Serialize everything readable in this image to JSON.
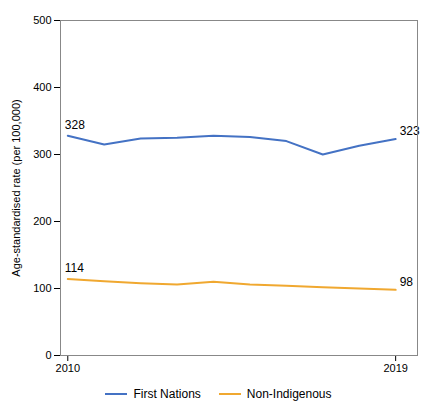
{
  "chart_data": {
    "type": "line",
    "x": [
      2010,
      2011,
      2012,
      2013,
      2014,
      2015,
      2016,
      2017,
      2018,
      2019
    ],
    "series": [
      {
        "name": "First Nations",
        "color": "#4472C4",
        "values": [
          328,
          315,
          324,
          325,
          328,
          326,
          320,
          300,
          313,
          323
        ]
      },
      {
        "name": "Non-Indigenous",
        "color": "#F0A830",
        "values": [
          114,
          111,
          108,
          106,
          110,
          106,
          104,
          102,
          100,
          98
        ]
      }
    ],
    "ylabel": "Age-standardised rate (per 100,000)",
    "xlim": [
      2009.8,
      2019.6
    ],
    "xticks": [
      2010,
      2019
    ],
    "ylim": [
      0,
      500
    ],
    "yticks": [
      0,
      100,
      200,
      300,
      400,
      500
    ],
    "annotations": [
      {
        "text": "328",
        "x": 2010,
        "y": 328
      },
      {
        "text": "323",
        "x": 2019,
        "y": 323
      },
      {
        "text": "114",
        "x": 2010,
        "y": 114
      },
      {
        "text": "98",
        "x": 2019,
        "y": 98
      }
    ],
    "grid": false,
    "legend": "bottom"
  }
}
